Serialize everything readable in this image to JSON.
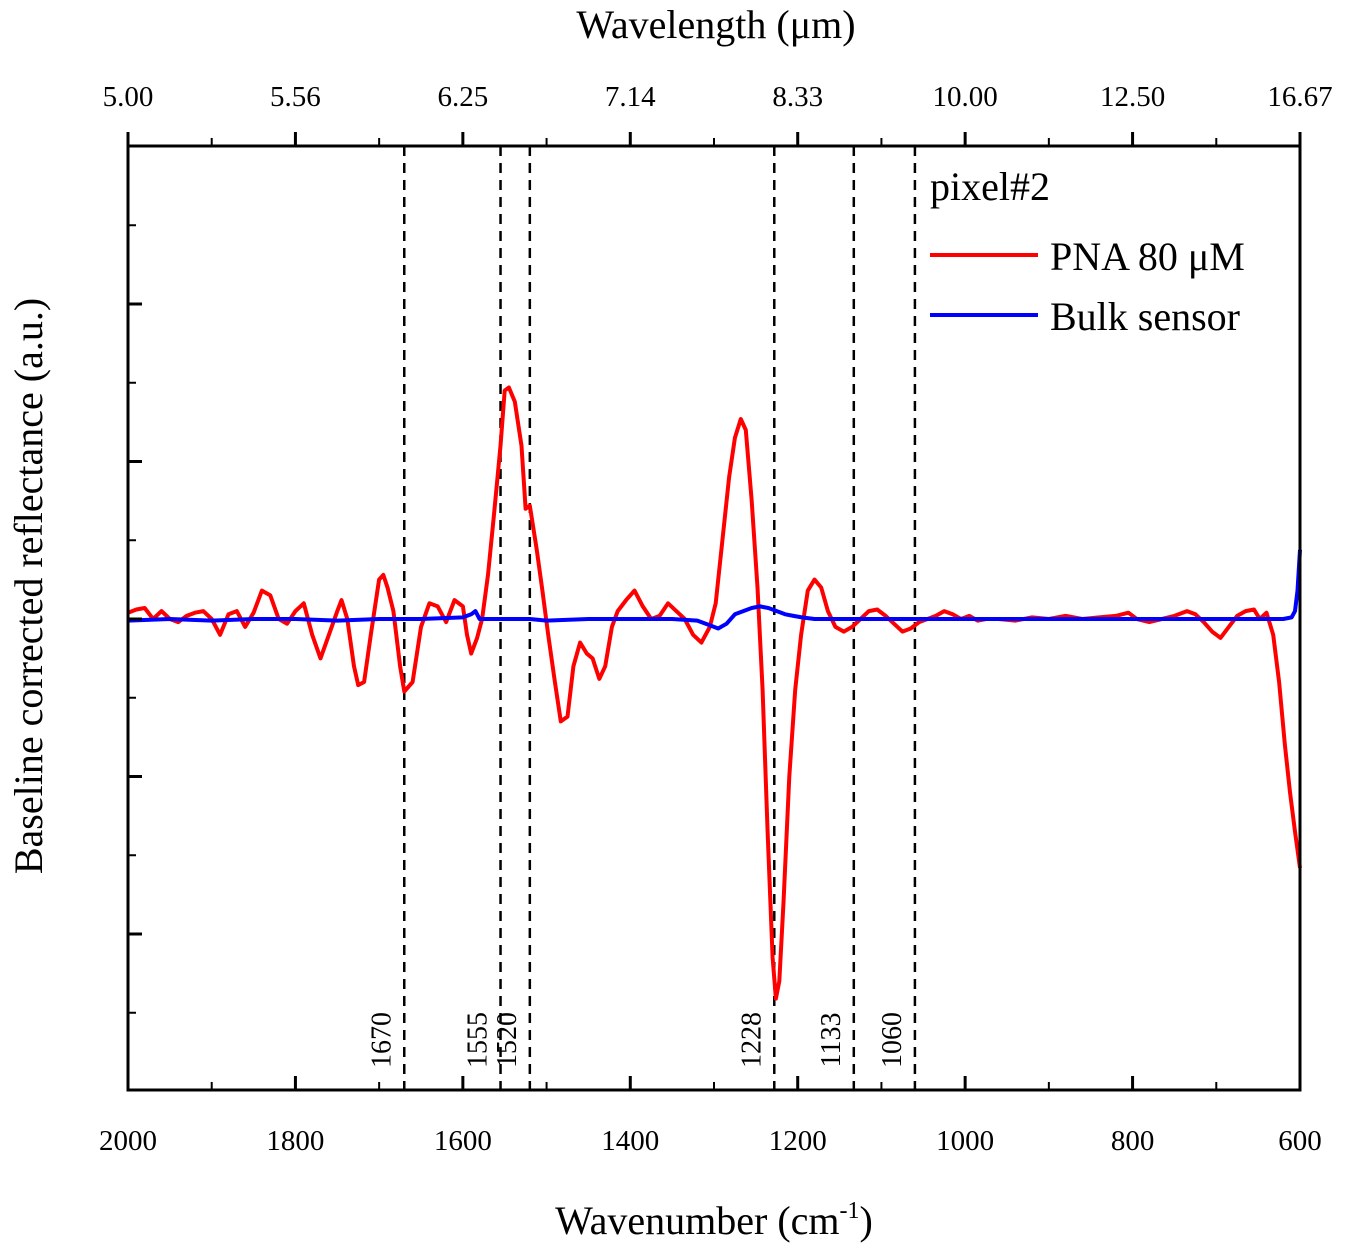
{
  "chart_data": {
    "type": "line",
    "xlabel": "Wavenumber (cm",
    "xlabel_sup": "-1",
    "xlabel_close": ")",
    "x2label": "Wavelength (μm)",
    "ylabel": "Baseline corrected reflectance (a.u.)",
    "xlim": [
      2000,
      600
    ],
    "ylim": [
      -3,
      3
    ],
    "x_ticks": [
      "2000",
      "1800",
      "1600",
      "1400",
      "1200",
      "1000",
      "800",
      "600"
    ],
    "x2_ticks": [
      "5.00",
      "5.56",
      "6.25",
      "7.14",
      "8.33",
      "10.00",
      "12.50",
      "16.67"
    ],
    "peak_lines": [
      "1670",
      "1555",
      "1520",
      "1228",
      "1133",
      "1060"
    ],
    "legend": {
      "title": "pixel#2",
      "entries": [
        {
          "name": "PNA 80 μM",
          "color": "#ff0000"
        },
        {
          "name": "Bulk sensor",
          "color": "#0000ff"
        }
      ]
    },
    "series": [
      {
        "name": "PNA 80 μM",
        "color": "#ff0000",
        "points": [
          [
            2000,
            0.04
          ],
          [
            1990,
            0.06
          ],
          [
            1980,
            0.07
          ],
          [
            1970,
            0.0
          ],
          [
            1960,
            0.05
          ],
          [
            1950,
            0.0
          ],
          [
            1940,
            -0.02
          ],
          [
            1930,
            0.02
          ],
          [
            1920,
            0.04
          ],
          [
            1910,
            0.05
          ],
          [
            1900,
            0.0
          ],
          [
            1890,
            -0.1
          ],
          [
            1880,
            0.03
          ],
          [
            1870,
            0.05
          ],
          [
            1860,
            -0.05
          ],
          [
            1850,
            0.04
          ],
          [
            1840,
            0.18
          ],
          [
            1830,
            0.15
          ],
          [
            1820,
            0.0
          ],
          [
            1810,
            -0.03
          ],
          [
            1800,
            0.05
          ],
          [
            1790,
            0.1
          ],
          [
            1780,
            -0.1
          ],
          [
            1770,
            -0.25
          ],
          [
            1760,
            -0.1
          ],
          [
            1750,
            0.05
          ],
          [
            1745,
            0.12
          ],
          [
            1738,
            0.0
          ],
          [
            1730,
            -0.3
          ],
          [
            1725,
            -0.42
          ],
          [
            1718,
            -0.4
          ],
          [
            1710,
            -0.1
          ],
          [
            1700,
            0.25
          ],
          [
            1695,
            0.28
          ],
          [
            1690,
            0.2
          ],
          [
            1683,
            0.05
          ],
          [
            1675,
            -0.3
          ],
          [
            1670,
            -0.46
          ],
          [
            1660,
            -0.4
          ],
          [
            1650,
            -0.05
          ],
          [
            1640,
            0.1
          ],
          [
            1630,
            0.08
          ],
          [
            1620,
            -0.02
          ],
          [
            1610,
            0.12
          ],
          [
            1600,
            0.08
          ],
          [
            1595,
            -0.1
          ],
          [
            1590,
            -0.22
          ],
          [
            1583,
            -0.12
          ],
          [
            1577,
            0.0
          ],
          [
            1570,
            0.28
          ],
          [
            1563,
            0.65
          ],
          [
            1555,
            1.1
          ],
          [
            1550,
            1.45
          ],
          [
            1545,
            1.47
          ],
          [
            1538,
            1.38
          ],
          [
            1530,
            1.1
          ],
          [
            1525,
            0.7
          ],
          [
            1520,
            0.72
          ],
          [
            1512,
            0.45
          ],
          [
            1505,
            0.18
          ],
          [
            1498,
            -0.1
          ],
          [
            1490,
            -0.4
          ],
          [
            1483,
            -0.65
          ],
          [
            1475,
            -0.62
          ],
          [
            1468,
            -0.3
          ],
          [
            1460,
            -0.15
          ],
          [
            1452,
            -0.22
          ],
          [
            1445,
            -0.25
          ],
          [
            1437,
            -0.38
          ],
          [
            1430,
            -0.3
          ],
          [
            1422,
            -0.05
          ],
          [
            1415,
            0.05
          ],
          [
            1405,
            0.12
          ],
          [
            1395,
            0.18
          ],
          [
            1385,
            0.08
          ],
          [
            1375,
            0.0
          ],
          [
            1365,
            0.02
          ],
          [
            1355,
            0.1
          ],
          [
            1345,
            0.05
          ],
          [
            1335,
            0.0
          ],
          [
            1325,
            -0.1
          ],
          [
            1315,
            -0.15
          ],
          [
            1305,
            -0.05
          ],
          [
            1298,
            0.1
          ],
          [
            1290,
            0.5
          ],
          [
            1282,
            0.9
          ],
          [
            1275,
            1.15
          ],
          [
            1268,
            1.27
          ],
          [
            1262,
            1.2
          ],
          [
            1255,
            0.75
          ],
          [
            1248,
            0.2
          ],
          [
            1242,
            -0.45
          ],
          [
            1236,
            -1.35
          ],
          [
            1230,
            -2.15
          ],
          [
            1226,
            -2.41
          ],
          [
            1222,
            -2.3
          ],
          [
            1217,
            -1.8
          ],
          [
            1210,
            -1.0
          ],
          [
            1203,
            -0.45
          ],
          [
            1196,
            -0.1
          ],
          [
            1188,
            0.18
          ],
          [
            1180,
            0.25
          ],
          [
            1172,
            0.2
          ],
          [
            1164,
            0.05
          ],
          [
            1155,
            -0.05
          ],
          [
            1145,
            -0.08
          ],
          [
            1135,
            -0.05
          ],
          [
            1125,
            0.0
          ],
          [
            1115,
            0.05
          ],
          [
            1105,
            0.06
          ],
          [
            1095,
            0.02
          ],
          [
            1085,
            -0.03
          ],
          [
            1075,
            -0.08
          ],
          [
            1065,
            -0.06
          ],
          [
            1055,
            -0.02
          ],
          [
            1045,
            0.0
          ],
          [
            1035,
            0.02
          ],
          [
            1025,
            0.05
          ],
          [
            1015,
            0.03
          ],
          [
            1005,
            0.0
          ],
          [
            995,
            0.02
          ],
          [
            985,
            -0.01
          ],
          [
            975,
            0.0
          ],
          [
            960,
            0.0
          ],
          [
            940,
            -0.01
          ],
          [
            920,
            0.01
          ],
          [
            900,
            0.0
          ],
          [
            880,
            0.02
          ],
          [
            860,
            0.0
          ],
          [
            840,
            0.01
          ],
          [
            820,
            0.02
          ],
          [
            805,
            0.04
          ],
          [
            795,
            0.0
          ],
          [
            780,
            -0.02
          ],
          [
            765,
            0.0
          ],
          [
            750,
            0.02
          ],
          [
            735,
            0.05
          ],
          [
            725,
            0.03
          ],
          [
            715,
            -0.02
          ],
          [
            705,
            -0.08
          ],
          [
            695,
            -0.12
          ],
          [
            685,
            -0.05
          ],
          [
            675,
            0.02
          ],
          [
            665,
            0.05
          ],
          [
            655,
            0.06
          ],
          [
            648,
            0.0
          ],
          [
            640,
            0.04
          ],
          [
            632,
            -0.1
          ],
          [
            625,
            -0.4
          ],
          [
            618,
            -0.8
          ],
          [
            612,
            -1.1
          ],
          [
            606,
            -1.35
          ],
          [
            600,
            -1.58
          ]
        ]
      },
      {
        "name": "Bulk sensor",
        "color": "#0000ff",
        "points": [
          [
            2000,
            -0.01
          ],
          [
            1950,
            0.0
          ],
          [
            1900,
            -0.01
          ],
          [
            1850,
            0.0
          ],
          [
            1800,
            0.0
          ],
          [
            1750,
            -0.01
          ],
          [
            1700,
            0.0
          ],
          [
            1650,
            0.0
          ],
          [
            1600,
            0.01
          ],
          [
            1590,
            0.03
          ],
          [
            1585,
            0.05
          ],
          [
            1580,
            0.0
          ],
          [
            1550,
            0.0
          ],
          [
            1520,
            0.0
          ],
          [
            1500,
            -0.01
          ],
          [
            1450,
            0.0
          ],
          [
            1400,
            0.0
          ],
          [
            1350,
            0.0
          ],
          [
            1320,
            -0.01
          ],
          [
            1305,
            -0.04
          ],
          [
            1295,
            -0.06
          ],
          [
            1285,
            -0.03
          ],
          [
            1275,
            0.03
          ],
          [
            1265,
            0.05
          ],
          [
            1255,
            0.07
          ],
          [
            1245,
            0.08
          ],
          [
            1235,
            0.07
          ],
          [
            1225,
            0.05
          ],
          [
            1215,
            0.03
          ],
          [
            1205,
            0.02
          ],
          [
            1195,
            0.01
          ],
          [
            1180,
            0.0
          ],
          [
            1150,
            0.0
          ],
          [
            1100,
            0.0
          ],
          [
            1050,
            0.0
          ],
          [
            1000,
            0.0
          ],
          [
            950,
            0.0
          ],
          [
            900,
            0.0
          ],
          [
            850,
            0.0
          ],
          [
            800,
            0.0
          ],
          [
            750,
            0.0
          ],
          [
            700,
            0.0
          ],
          [
            650,
            0.0
          ],
          [
            620,
            0.0
          ],
          [
            610,
            0.01
          ],
          [
            606,
            0.05
          ],
          [
            603,
            0.18
          ],
          [
            600,
            0.44
          ]
        ]
      }
    ]
  }
}
